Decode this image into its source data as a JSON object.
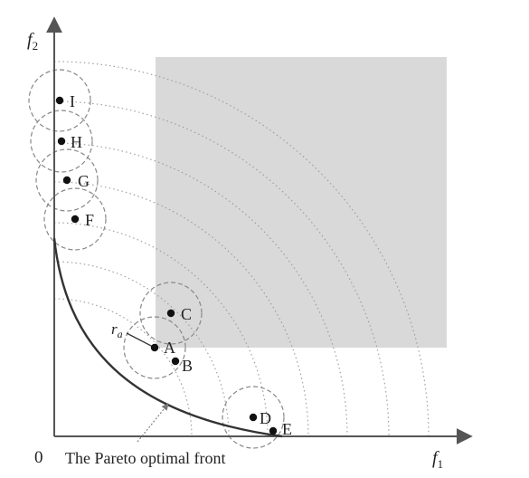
{
  "axes": {
    "origin_label": "0",
    "x_label": "f",
    "x_label_sub": "1",
    "y_label": "f",
    "y_label_sub": "2"
  },
  "pareto_front_label": "The Pareto optimal front",
  "radius_label": "r",
  "radius_label_sub": "a",
  "points": [
    {
      "id": "I",
      "label": "I"
    },
    {
      "id": "H",
      "label": "H"
    },
    {
      "id": "G",
      "label": "G"
    },
    {
      "id": "F",
      "label": "F"
    },
    {
      "id": "C",
      "label": "C"
    },
    {
      "id": "A",
      "label": "A"
    },
    {
      "id": "B",
      "label": "B"
    },
    {
      "id": "D",
      "label": "D"
    },
    {
      "id": "E",
      "label": "E"
    }
  ],
  "colors": {
    "shaded_region": "#d9d9d9",
    "axis": "#555555",
    "front": "#333333",
    "circle": "#888888",
    "dotted_arc": "#9a9a9a",
    "point": "#111111"
  }
}
